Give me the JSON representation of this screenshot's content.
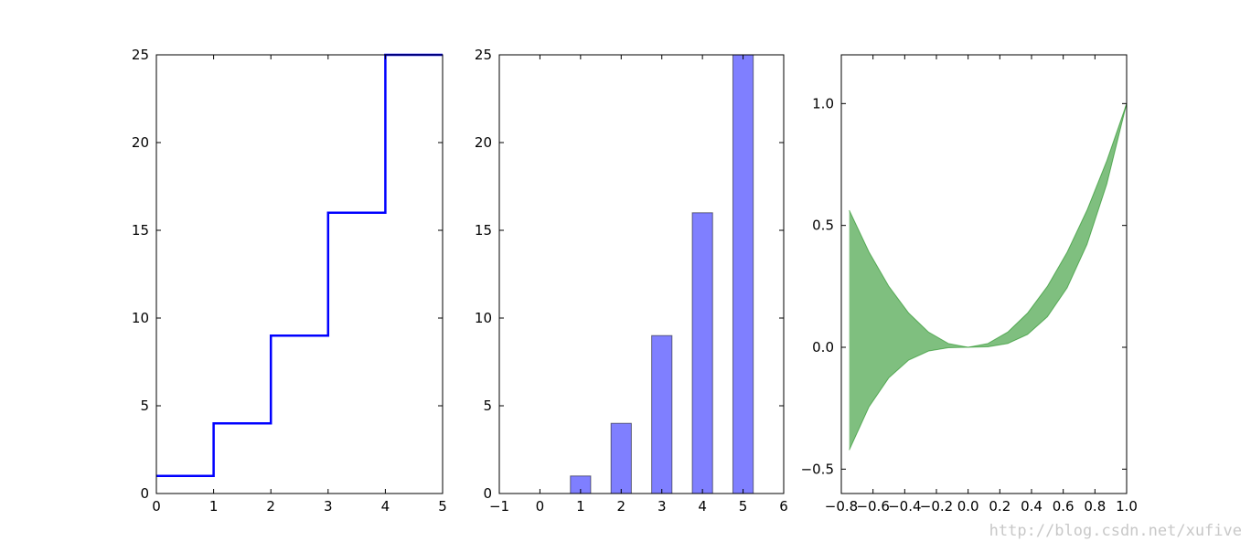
{
  "chart_data": [
    {
      "type": "step",
      "x": [
        0,
        1,
        2,
        3,
        4,
        5
      ],
      "values": [
        1,
        4,
        9,
        16,
        25,
        25
      ],
      "color": "#0000ff",
      "xlim": [
        0,
        5
      ],
      "xticks": [
        0,
        1,
        2,
        3,
        4,
        5
      ],
      "ylim": [
        0,
        25
      ],
      "yticks": [
        0,
        5,
        10,
        15,
        20,
        25
      ]
    },
    {
      "type": "bar",
      "x": [
        0,
        1,
        2,
        3,
        4,
        5
      ],
      "values": [
        0,
        1,
        4,
        9,
        16,
        25
      ],
      "color": "#0000ff",
      "xlim": [
        -1,
        6
      ],
      "xticks": [
        {
          "value": -1,
          "label": "−1"
        },
        0,
        1,
        2,
        3,
        4,
        5,
        6
      ],
      "ylim": [
        0,
        25
      ],
      "yticks": [
        0,
        5,
        10,
        15,
        20,
        25
      ]
    },
    {
      "type": "area",
      "x": [
        -0.75,
        -0.625,
        -0.5,
        -0.375,
        -0.25,
        -0.125,
        0,
        0.125,
        0.25,
        0.375,
        0.5,
        0.625,
        0.75,
        0.875,
        1
      ],
      "series": [
        {
          "color": "#008000",
          "values": [
            0.5625,
            0.390625,
            0.25,
            0.140625,
            0.0625,
            0.015625,
            0,
            0.015625,
            0.0625,
            0.140625,
            0.25,
            0.390625,
            0.5625,
            0.765625,
            1
          ]
        },
        {
          "color": "#008000",
          "values": [
            -0.421875,
            -0.244141,
            -0.125,
            -0.052734,
            -0.015625,
            -0.001953,
            0,
            0.001953,
            0.015625,
            0.052734,
            0.125,
            0.244141,
            0.421875,
            0.669922,
            1
          ]
        }
      ],
      "xlim": [
        -0.8,
        1.0
      ],
      "xticks": [
        {
          "value": -0.8,
          "label": "−0.8"
        },
        {
          "value": -0.6,
          "label": "−0.6"
        },
        {
          "value": -0.4,
          "label": "−0.4"
        },
        {
          "value": -0.2,
          "label": "−0.2"
        },
        {
          "value": 0,
          "label": "0.0"
        },
        0.2,
        0.4,
        0.6,
        0.8,
        {
          "value": 1,
          "label": "1.0"
        }
      ],
      "ylim": [
        -0.6,
        1.2
      ],
      "yticks": [
        {
          "value": -0.5,
          "label": "−0.5"
        },
        {
          "value": 0,
          "label": "0.0"
        },
        0.5,
        {
          "value": 1,
          "label": "1.0"
        }
      ]
    }
  ],
  "watermark": "http://blog.csdn.net/xufive"
}
